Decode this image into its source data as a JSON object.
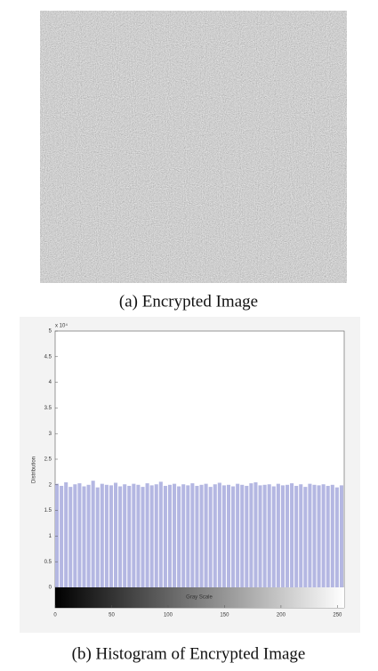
{
  "figure_a": {
    "caption": "(a) Encrypted Image"
  },
  "chart_data": {
    "type": "histogram",
    "y_label": "Distribution",
    "x_label": "Gray Scale",
    "y_multiplier": "x 10⁴",
    "bins": [
      0,
      4,
      8,
      12,
      16,
      20,
      24,
      28,
      32,
      36,
      40,
      44,
      48,
      52,
      56,
      60,
      64,
      68,
      72,
      76,
      80,
      84,
      88,
      92,
      96,
      100,
      104,
      108,
      112,
      116,
      120,
      124,
      128,
      132,
      136,
      140,
      144,
      148,
      152,
      156,
      160,
      164,
      168,
      172,
      176,
      180,
      184,
      188,
      192,
      196,
      200,
      204,
      208,
      212,
      216,
      220,
      224,
      228,
      232,
      236,
      240,
      244,
      248,
      252,
      256
    ],
    "values": [
      2.02,
      1.98,
      2.05,
      1.96,
      2.01,
      2.03,
      1.97,
      2.0,
      2.08,
      1.95,
      2.02,
      2.0,
      1.99,
      2.04,
      1.97,
      2.01,
      1.98,
      2.02,
      2.0,
      1.96,
      2.03,
      1.99,
      2.01,
      2.06,
      1.98,
      2.0,
      2.02,
      1.97,
      2.01,
      1.99,
      2.03,
      1.98,
      2.0,
      2.02,
      1.96,
      2.01,
      2.04,
      1.99,
      2.0,
      1.97,
      2.02,
      2.0,
      1.98,
      2.03,
      2.05,
      1.99,
      2.0,
      2.01,
      1.97,
      2.02,
      1.99,
      2.0,
      2.03,
      1.98,
      2.01,
      1.96,
      2.02,
      2.0,
      1.99,
      2.01,
      1.98,
      2.0,
      1.95,
      1.99
    ],
    "color": "#b4b7e2",
    "xlim": [
      0,
      256
    ],
    "ylim": [
      0,
      5
    ],
    "xticks": [
      0,
      50,
      100,
      150,
      200,
      250
    ],
    "yticks": [
      0,
      0.5,
      1,
      1.5,
      2,
      2.5,
      3,
      3.5,
      4,
      4.5,
      5
    ],
    "grid": false
  },
  "figure_b": {
    "caption": "(b) Histogram of Encrypted Image"
  }
}
